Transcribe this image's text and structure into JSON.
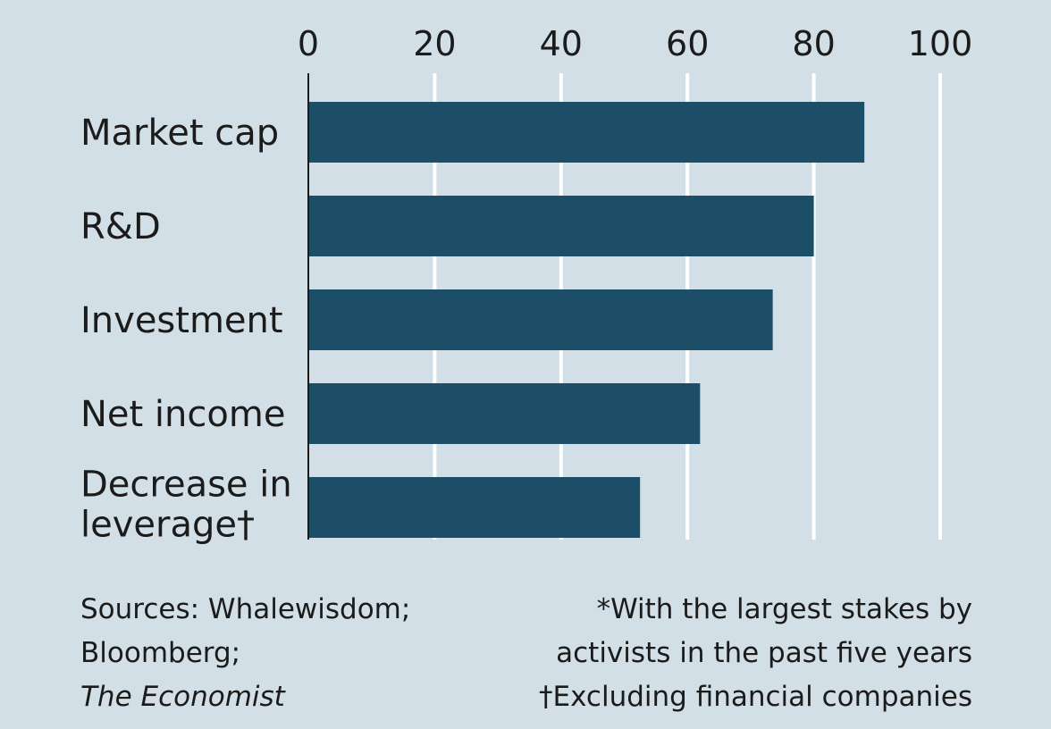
{
  "chart_data": {
    "type": "bar",
    "orientation": "horizontal",
    "categories": [
      "Market cap",
      "R&D",
      "Investment",
      "Net income",
      "Decrease in leverage†"
    ],
    "category_lines": [
      [
        "Market cap"
      ],
      [
        "R&D"
      ],
      [
        "Investment"
      ],
      [
        "Net income"
      ],
      [
        "Decrease in",
        "leverage†"
      ]
    ],
    "values": [
      88,
      80,
      73.5,
      62,
      52.5
    ],
    "xlim": [
      0,
      100
    ],
    "xticks": [
      0,
      20,
      40,
      60,
      80,
      100
    ],
    "xtick_labels": [
      "0",
      "20",
      "40",
      "60",
      "80",
      "100"
    ],
    "grid": true,
    "colors": {
      "bar": "#1d4e68",
      "background": "#d2dfe6",
      "grid": "#ffffff",
      "axis": "#1b1b1b"
    }
  },
  "footer": {
    "sources_line1": "Sources: Whalewisdom;",
    "sources_line2": "Bloomberg;",
    "sources_line3": "The Economist",
    "note_line1": "*With the largest stakes by",
    "note_line2": "activists in the past five years",
    "note_line3": "†Excluding financial companies"
  }
}
